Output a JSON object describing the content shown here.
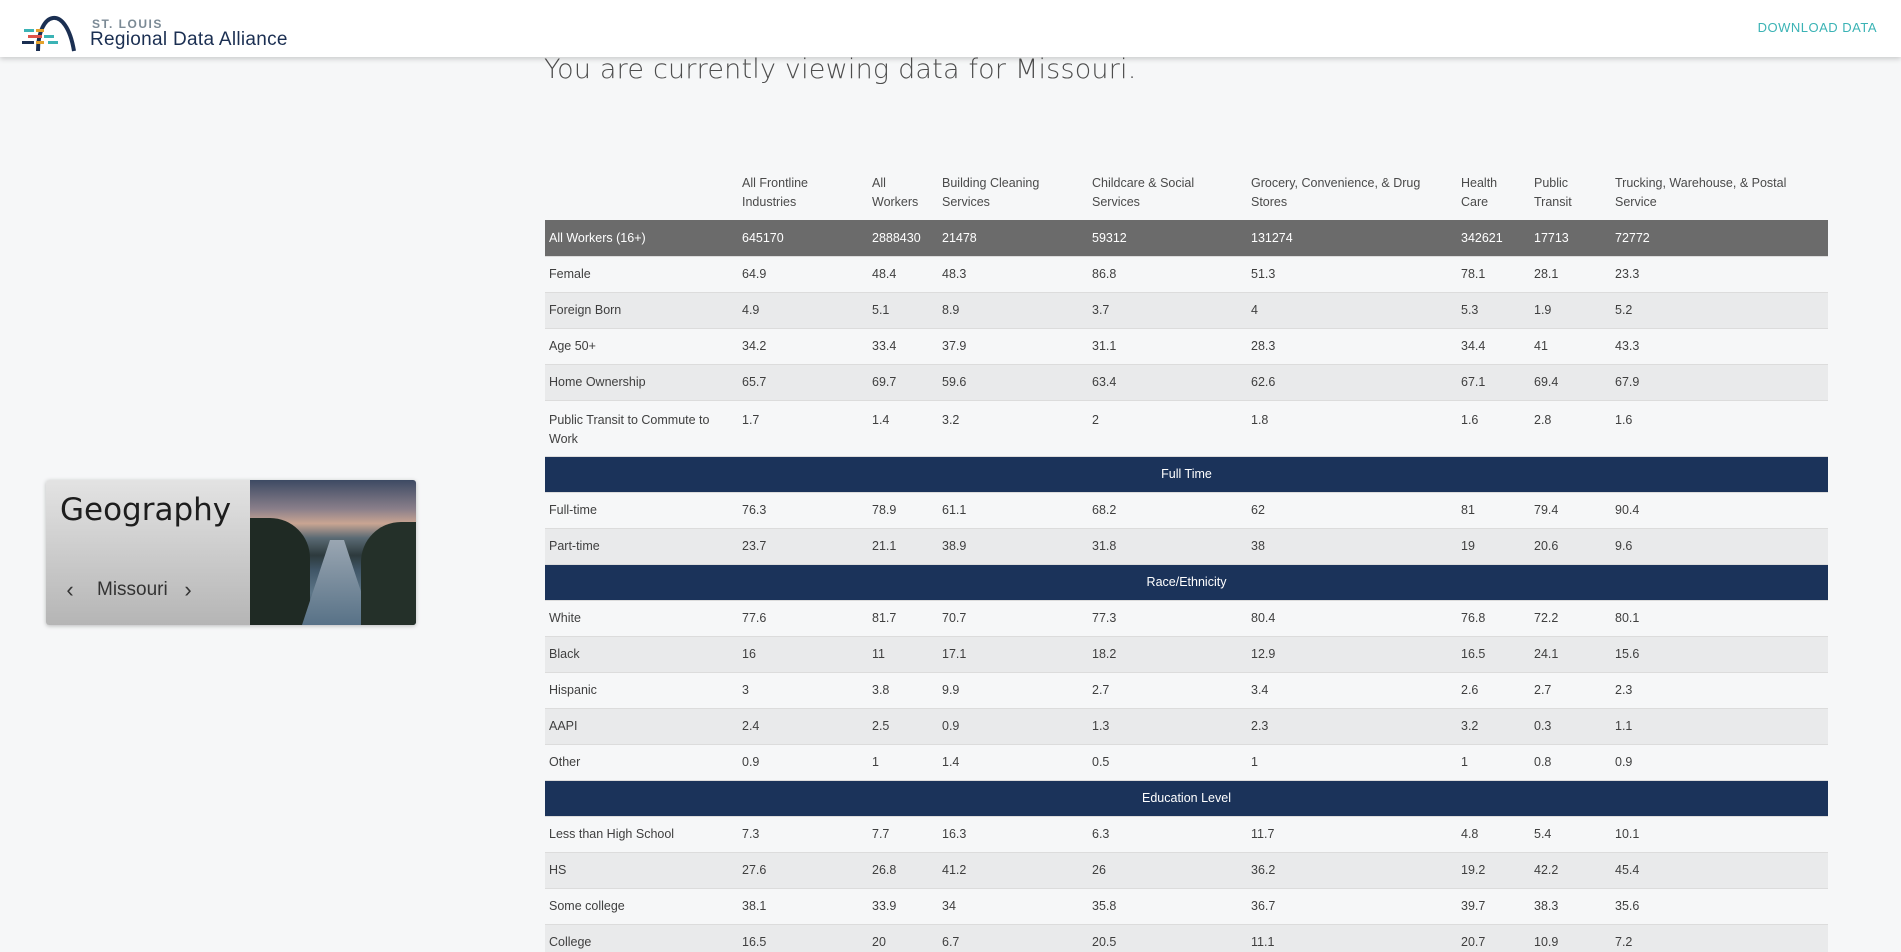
{
  "header": {
    "logo_small": "ST. LOUIS",
    "logo_big": "Regional Data Alliance",
    "download_label": "DOWNLOAD DATA"
  },
  "viewing_text": "You are currently viewing data for Missouri.",
  "geography": {
    "title": "Geography",
    "value": "Missouri",
    "prev_icon": "chevron-left-icon",
    "next_icon": "chevron-right-icon"
  },
  "table": {
    "columns": [
      "",
      "All Frontline Industries",
      "All Workers",
      "Building Cleaning Services",
      "Childcare & Social Services",
      "Grocery, Convenience, & Drug Stores",
      "Health Care",
      "Public Transit",
      "Trucking, Warehouse, & Postal Service"
    ],
    "total": {
      "label": "All Workers (16+)",
      "values": [
        "645170",
        "2888430",
        "21478",
        "59312",
        "131274",
        "342621",
        "17713",
        "72772"
      ]
    },
    "group1": [
      {
        "label": "Female",
        "values": [
          "64.9",
          "48.4",
          "48.3",
          "86.8",
          "51.3",
          "78.1",
          "28.1",
          "23.3"
        ]
      },
      {
        "label": "Foreign Born",
        "values": [
          "4.9",
          "5.1",
          "8.9",
          "3.7",
          "4",
          "5.3",
          "1.9",
          "5.2"
        ]
      },
      {
        "label": "Age 50+",
        "values": [
          "34.2",
          "33.4",
          "37.9",
          "31.1",
          "28.3",
          "34.4",
          "41",
          "43.3"
        ]
      },
      {
        "label": "Home Ownership",
        "values": [
          "65.7",
          "69.7",
          "59.6",
          "63.4",
          "62.6",
          "67.1",
          "69.4",
          "67.9"
        ]
      },
      {
        "label": "Public Transit to Commute to Work",
        "values": [
          "1.7",
          "1.4",
          "3.2",
          "2",
          "1.8",
          "1.6",
          "2.8",
          "1.6"
        ]
      }
    ],
    "section_fulltime": "Full Time",
    "fulltime": [
      {
        "label": "Full-time",
        "values": [
          "76.3",
          "78.9",
          "61.1",
          "68.2",
          "62",
          "81",
          "79.4",
          "90.4"
        ]
      },
      {
        "label": "Part-time",
        "values": [
          "23.7",
          "21.1",
          "38.9",
          "31.8",
          "38",
          "19",
          "20.6",
          "9.6"
        ]
      }
    ],
    "section_race": "Race/Ethnicity",
    "race": [
      {
        "label": "White",
        "values": [
          "77.6",
          "81.7",
          "70.7",
          "77.3",
          "80.4",
          "76.8",
          "72.2",
          "80.1"
        ]
      },
      {
        "label": "Black",
        "values": [
          "16",
          "11",
          "17.1",
          "18.2",
          "12.9",
          "16.5",
          "24.1",
          "15.6"
        ]
      },
      {
        "label": "Hispanic",
        "values": [
          "3",
          "3.8",
          "9.9",
          "2.7",
          "3.4",
          "2.6",
          "2.7",
          "2.3"
        ]
      },
      {
        "label": "AAPI",
        "values": [
          "2.4",
          "2.5",
          "0.9",
          "1.3",
          "2.3",
          "3.2",
          "0.3",
          "1.1"
        ]
      },
      {
        "label": "Other",
        "values": [
          "0.9",
          "1",
          "1.4",
          "0.5",
          "1",
          "1",
          "0.8",
          "0.9"
        ]
      }
    ],
    "section_education": "Education Level",
    "education": [
      {
        "label": "Less than High School",
        "values": [
          "7.3",
          "7.7",
          "16.3",
          "6.3",
          "11.7",
          "4.8",
          "5.4",
          "10.1"
        ]
      },
      {
        "label": "HS",
        "values": [
          "27.6",
          "26.8",
          "41.2",
          "26",
          "36.2",
          "19.2",
          "42.2",
          "45.4"
        ]
      },
      {
        "label": "Some college",
        "values": [
          "38.1",
          "33.9",
          "34",
          "35.8",
          "36.7",
          "39.7",
          "38.3",
          "35.6"
        ]
      },
      {
        "label": "College",
        "values": [
          "16.5",
          "20",
          "6.7",
          "20.5",
          "11.1",
          "20.7",
          "10.9",
          "7.2"
        ]
      }
    ]
  }
}
